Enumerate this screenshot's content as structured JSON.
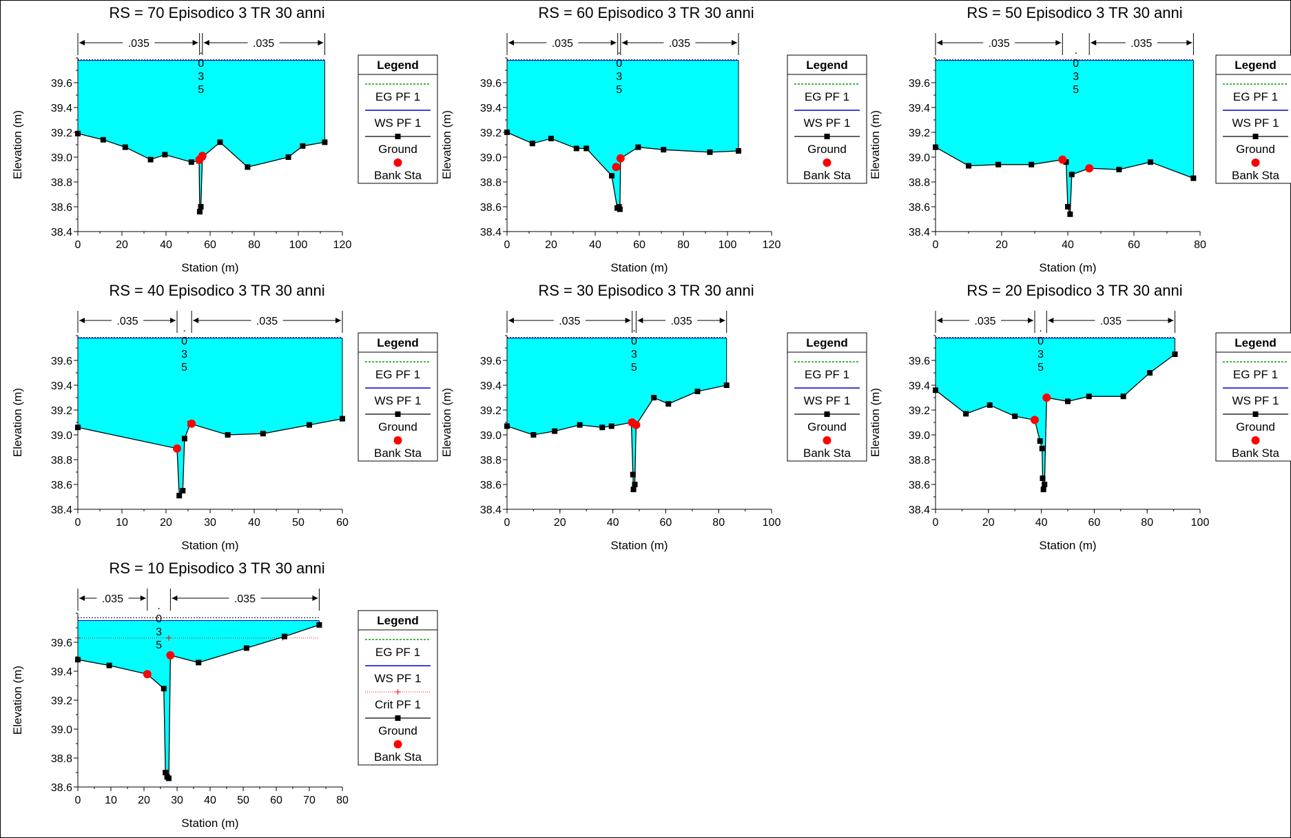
{
  "page": {
    "background": "#ffffff"
  },
  "colors": {
    "water": "#00ffff",
    "ground": "#000000",
    "eg_line": "#00a000",
    "ws_line": "#0000cc",
    "crit_line": "#ff0000",
    "bank_sta": "#ff0000"
  },
  "legend_items": {
    "title": "Legend",
    "eg": "EG PF 1",
    "ws": "WS PF 1",
    "crit": "Crit PF 1",
    "ground": "Ground",
    "bank": "Bank Sta"
  },
  "chart_data": [
    {
      "type": "area",
      "title": "RS = 70  Episodico 3 TR 30 anni",
      "xlabel": "Station (m)",
      "ylabel": "Elevation (m)",
      "xlim": [
        0,
        120
      ],
      "xticks": [
        0,
        20,
        40,
        60,
        80,
        100,
        120
      ],
      "ylim": [
        38.4,
        39.8
      ],
      "yticks": [
        38.4,
        38.6,
        38.8,
        39.0,
        39.2,
        39.4,
        39.6
      ],
      "ws": 39.78,
      "eg": 39.785,
      "ground": [
        [
          0,
          39.19
        ],
        [
          11.5,
          39.14
        ],
        [
          21.5,
          39.08
        ],
        [
          33,
          38.98
        ],
        [
          39.5,
          39.02
        ],
        [
          51.5,
          38.96
        ],
        [
          55,
          38.97
        ],
        [
          55.3,
          38.56
        ],
        [
          55.8,
          38.6
        ],
        [
          56.5,
          39.0
        ],
        [
          64.5,
          39.12
        ],
        [
          77,
          38.92
        ],
        [
          95.5,
          39.0
        ],
        [
          102,
          39.09
        ],
        [
          112,
          39.12
        ]
      ],
      "bank_sta": [
        [
          55.2,
          38.98
        ],
        [
          56.5,
          39.01
        ]
      ],
      "n_values": [
        ".035",
        ".035",
        ".035"
      ],
      "n_breaks": [
        55.2,
        56.5
      ],
      "legend_items": [
        "eg",
        "ws",
        "ground",
        "bank"
      ]
    },
    {
      "type": "area",
      "title": "RS = 60  Episodico 3 TR 30 anni",
      "xlabel": "Station (m)",
      "ylabel": "Elevation (m)",
      "xlim": [
        0,
        120
      ],
      "xticks": [
        0,
        20,
        40,
        60,
        80,
        100,
        120
      ],
      "ylim": [
        38.4,
        39.8
      ],
      "yticks": [
        38.4,
        38.6,
        38.8,
        39.0,
        39.2,
        39.4,
        39.6
      ],
      "ws": 39.78,
      "eg": 39.785,
      "ground": [
        [
          0,
          39.2
        ],
        [
          11.5,
          39.11
        ],
        [
          20,
          39.15
        ],
        [
          31.5,
          39.07
        ],
        [
          36,
          39.07
        ],
        [
          47.5,
          38.85
        ],
        [
          50,
          38.59
        ],
        [
          50.8,
          38.6
        ],
        [
          51.2,
          38.58
        ],
        [
          51.5,
          38.99
        ],
        [
          59.5,
          39.08
        ],
        [
          71,
          39.06
        ],
        [
          92,
          39.04
        ],
        [
          105,
          39.05
        ]
      ],
      "bank_sta": [
        [
          49.5,
          38.92
        ],
        [
          51.5,
          38.99
        ]
      ],
      "n_values": [
        ".035",
        ".035",
        ".035"
      ],
      "n_breaks": [
        50.2,
        51.5
      ],
      "legend_items": [
        "eg",
        "ws",
        "ground",
        "bank"
      ]
    },
    {
      "type": "area",
      "title": "RS = 50  Episodico 3 TR 30 anni",
      "xlabel": "Station (m)",
      "ylabel": "Elevation (m)",
      "xlim": [
        0,
        80
      ],
      "xticks": [
        0,
        20,
        40,
        60,
        80
      ],
      "ylim": [
        38.4,
        39.8
      ],
      "yticks": [
        38.4,
        38.6,
        38.8,
        39.0,
        39.2,
        39.4,
        39.6
      ],
      "ws": 39.78,
      "eg": 39.785,
      "ground": [
        [
          0,
          39.08
        ],
        [
          10,
          38.93
        ],
        [
          19,
          38.94
        ],
        [
          29,
          38.94
        ],
        [
          38.5,
          38.98
        ],
        [
          39.5,
          38.96
        ],
        [
          40,
          38.6
        ],
        [
          40.7,
          38.54
        ],
        [
          41.2,
          38.86
        ],
        [
          46.5,
          38.91
        ],
        [
          55.5,
          38.9
        ],
        [
          65,
          38.96
        ],
        [
          78,
          38.83
        ]
      ],
      "bank_sta": [
        [
          38.4,
          38.98
        ],
        [
          46.5,
          38.91
        ]
      ],
      "n_values": [
        ".035",
        ".035",
        ".035"
      ],
      "n_breaks": [
        38.4,
        46.5
      ],
      "legend_items": [
        "eg",
        "ws",
        "ground",
        "bank"
      ]
    },
    {
      "type": "area",
      "title": "RS = 40  Episodico 3 TR 30 anni",
      "xlabel": "Station (m)",
      "ylabel": "Elevation (m)",
      "xlim": [
        0,
        60
      ],
      "xticks": [
        0,
        10,
        20,
        30,
        40,
        50,
        60
      ],
      "ylim": [
        38.4,
        39.8
      ],
      "yticks": [
        38.4,
        38.6,
        38.8,
        39.0,
        39.2,
        39.4,
        39.6
      ],
      "ws": 39.78,
      "eg": 39.785,
      "ground": [
        [
          0,
          39.06
        ],
        [
          22.5,
          38.89
        ],
        [
          23,
          38.51
        ],
        [
          23.8,
          38.55
        ],
        [
          24.2,
          38.97
        ],
        [
          25.5,
          39.09
        ],
        [
          34,
          39.0
        ],
        [
          42,
          39.01
        ],
        [
          52.5,
          39.08
        ],
        [
          60,
          39.13
        ]
      ],
      "bank_sta": [
        [
          22.5,
          38.89
        ],
        [
          25.8,
          39.09
        ]
      ],
      "n_values": [
        ".035",
        ".035",
        ".035"
      ],
      "n_breaks": [
        22.5,
        25.8
      ],
      "legend_items": [
        "eg",
        "ws",
        "ground",
        "bank"
      ]
    },
    {
      "type": "area",
      "title": "RS = 30  Episodico 3 TR 30 anni",
      "xlabel": "Station (m)",
      "ylabel": "Elevation (m)",
      "xlim": [
        0,
        100
      ],
      "xticks": [
        0,
        20,
        40,
        60,
        80,
        100
      ],
      "ylim": [
        38.4,
        39.8
      ],
      "yticks": [
        38.4,
        38.6,
        38.8,
        39.0,
        39.2,
        39.4,
        39.6
      ],
      "ws": 39.78,
      "eg": 39.785,
      "ground": [
        [
          0,
          39.07
        ],
        [
          10,
          39.0
        ],
        [
          18,
          39.03
        ],
        [
          27.5,
          39.08
        ],
        [
          36,
          39.06
        ],
        [
          39.5,
          39.07
        ],
        [
          47,
          39.1
        ],
        [
          47.6,
          38.68
        ],
        [
          47.8,
          38.56
        ],
        [
          48.3,
          38.6
        ],
        [
          48.8,
          39.08
        ],
        [
          55.5,
          39.3
        ],
        [
          61,
          39.25
        ],
        [
          72,
          39.35
        ],
        [
          83,
          39.4
        ]
      ],
      "bank_sta": [
        [
          47.3,
          39.1
        ],
        [
          48.8,
          39.08
        ]
      ],
      "n_values": [
        ".035",
        ".035",
        ".035"
      ],
      "n_breaks": [
        47.3,
        48.8
      ],
      "legend_items": [
        "eg",
        "ws",
        "ground",
        "bank"
      ]
    },
    {
      "type": "area",
      "title": "RS = 20  Episodico 3 TR 30 anni",
      "xlabel": "Station (m)",
      "ylabel": "Elevation (m)",
      "xlim": [
        0,
        100
      ],
      "xticks": [
        0,
        20,
        40,
        60,
        80,
        100
      ],
      "ylim": [
        38.4,
        39.8
      ],
      "yticks": [
        38.4,
        38.6,
        38.8,
        39.0,
        39.2,
        39.4,
        39.6
      ],
      "ws": 39.78,
      "eg": 39.785,
      "ground": [
        [
          0,
          39.36
        ],
        [
          11.5,
          39.17
        ],
        [
          20.5,
          39.24
        ],
        [
          30,
          39.15
        ],
        [
          37.5,
          39.12
        ],
        [
          39.5,
          38.95
        ],
        [
          40.3,
          38.89
        ],
        [
          40.5,
          38.65
        ],
        [
          40.8,
          38.56
        ],
        [
          41.2,
          38.6
        ],
        [
          42,
          39.3
        ],
        [
          50,
          39.27
        ],
        [
          58,
          39.31
        ],
        [
          71,
          39.31
        ],
        [
          81,
          39.5
        ],
        [
          90.5,
          39.65
        ]
      ],
      "bank_sta": [
        [
          37.5,
          39.12
        ],
        [
          42,
          39.3
        ]
      ],
      "n_values": [
        ".035",
        ".035",
        ".035"
      ],
      "n_breaks": [
        37.5,
        42
      ],
      "legend_items": [
        "eg",
        "ws",
        "ground",
        "bank"
      ]
    },
    {
      "type": "area",
      "title": "RS = 10  Episodico 3 TR 30 anni",
      "xlabel": "Station (m)",
      "ylabel": "Elevation (m)",
      "xlim": [
        0,
        80
      ],
      "xticks": [
        0,
        10,
        20,
        30,
        40,
        50,
        60,
        70,
        80
      ],
      "ylim": [
        38.6,
        39.8
      ],
      "yticks": [
        38.6,
        38.8,
        39.0,
        39.2,
        39.4,
        39.6
      ],
      "ws": 39.75,
      "eg": 39.77,
      "crit": 39.63,
      "crit_marks": [
        0,
        27.5,
        62
      ],
      "ground": [
        [
          0,
          39.48
        ],
        [
          9.5,
          39.44
        ],
        [
          21,
          39.38
        ],
        [
          26,
          39.28
        ],
        [
          26.5,
          38.7
        ],
        [
          27,
          38.67
        ],
        [
          27.5,
          38.66
        ],
        [
          28,
          39.51
        ],
        [
          36.5,
          39.46
        ],
        [
          51,
          39.56
        ],
        [
          62.5,
          39.64
        ],
        [
          73,
          39.72
        ]
      ],
      "bank_sta": [
        [
          21,
          39.38
        ],
        [
          28,
          39.51
        ]
      ],
      "n_values": [
        ".035",
        ".035",
        ".035"
      ],
      "n_breaks": [
        21,
        28
      ],
      "legend_items": [
        "eg",
        "ws",
        "crit",
        "ground",
        "bank"
      ]
    }
  ]
}
